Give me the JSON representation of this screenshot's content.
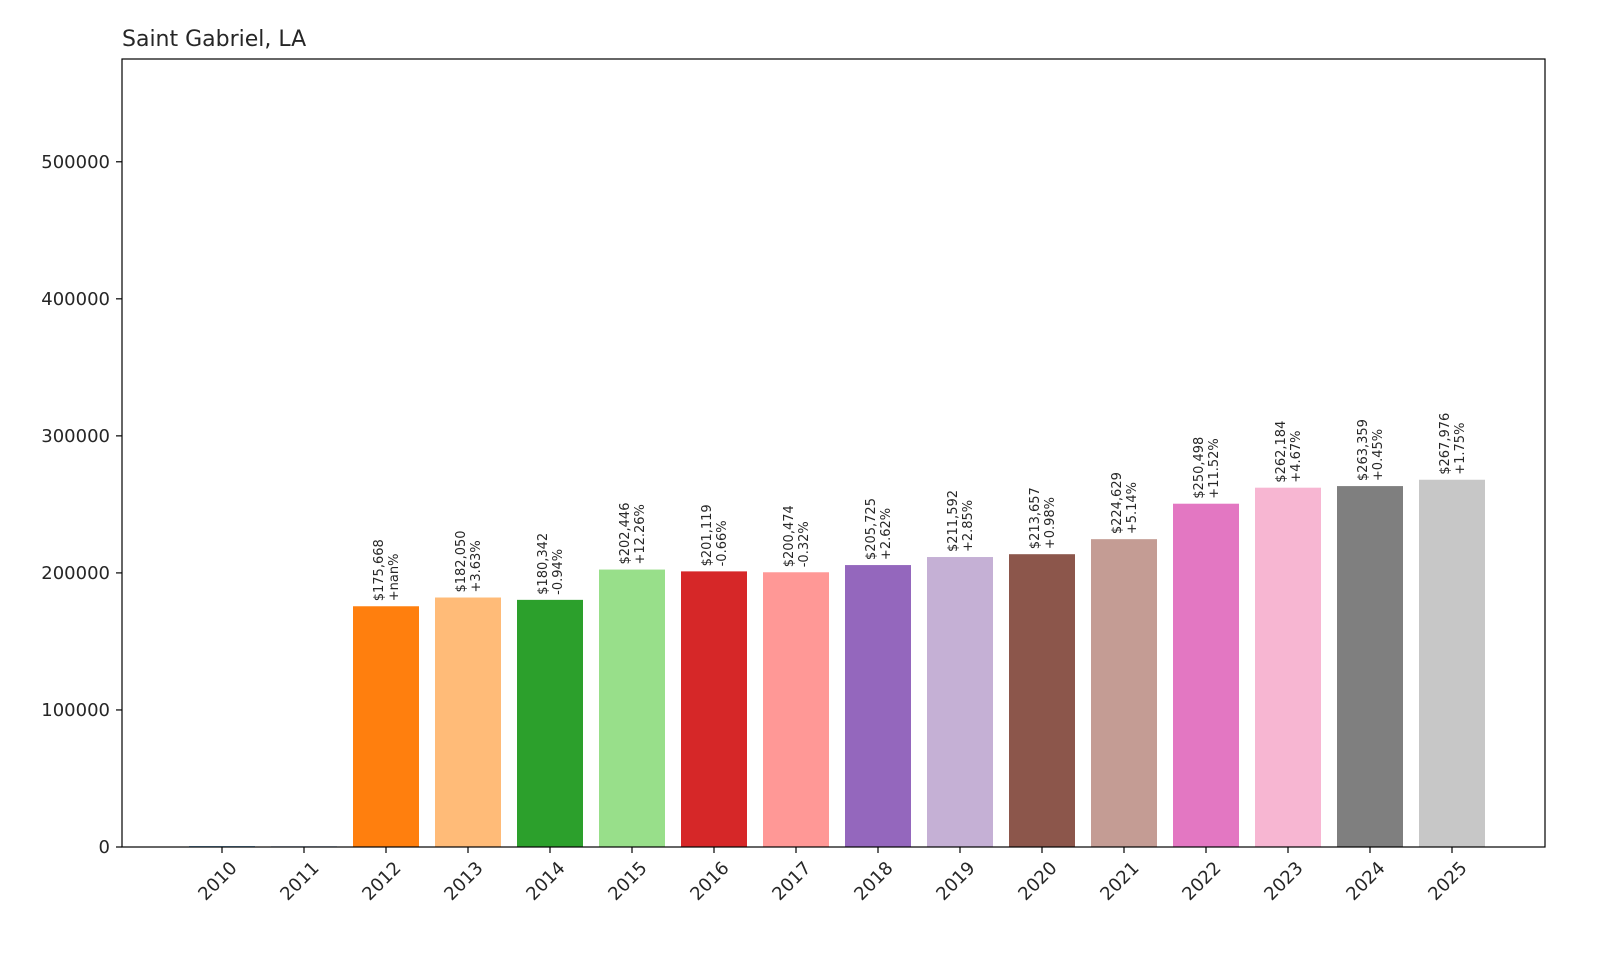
{
  "chart_data": {
    "type": "bar",
    "title": "Saint Gabriel, LA",
    "xlabel": "",
    "ylabel": "",
    "categories": [
      "2010",
      "2011",
      "2012",
      "2013",
      "2014",
      "2015",
      "2016",
      "2017",
      "2018",
      "2019",
      "2020",
      "2021",
      "2022",
      "2023",
      "2024",
      "2025"
    ],
    "values": [
      0,
      0,
      175668,
      182050,
      180342,
      202446,
      201119,
      200474,
      205725,
      211592,
      213657,
      224629,
      250498,
      262184,
      263359,
      267976
    ],
    "value_labels": [
      "",
      "",
      "$175,668",
      "$182,050",
      "$180,342",
      "$202,446",
      "$201,119",
      "$200,474",
      "$205,725",
      "$211,592",
      "$213,657",
      "$224,629",
      "$250,498",
      "$262,184",
      "$263,359",
      "$267,976"
    ],
    "change_labels": [
      "",
      "",
      "+nan%",
      "+3.63%",
      "-0.94%",
      "+12.26%",
      "-0.66%",
      "-0.32%",
      "+2.62%",
      "+2.85%",
      "+0.98%",
      "+5.14%",
      "+11.52%",
      "+4.67%",
      "+0.45%",
      "+1.75%"
    ],
    "colors": [
      "#1f77b4",
      "#aec7e8",
      "#ff7f0e",
      "#ffbb78",
      "#2ca02c",
      "#98df8a",
      "#d62728",
      "#ff9896",
      "#9467bd",
      "#c5b0d5",
      "#8c564b",
      "#c49c94",
      "#e377c2",
      "#f7b6d2",
      "#7f7f7f",
      "#c7c7c7"
    ],
    "ylim": [
      0,
      575000
    ],
    "yticks": [
      0,
      100000,
      200000,
      300000,
      400000,
      500000
    ],
    "grid": false,
    "legend": "none"
  }
}
